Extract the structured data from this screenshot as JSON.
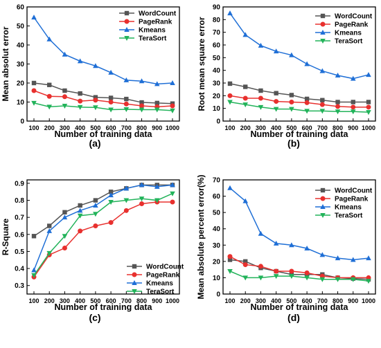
{
  "colors": {
    "WordCount": "#555555",
    "PageRank": "#e8302e",
    "Kmeans": "#1f6fd6",
    "TeraSort": "#22b35a"
  },
  "markers": {
    "WordCount": "square",
    "PageRank": "circle",
    "Kmeans": "triangle-up",
    "TeraSort": "triangle-down"
  },
  "chart_data": [
    {
      "panel": "(a)",
      "type": "line",
      "xlabel": "Number of training data",
      "ylabel": "Mean absolut error",
      "x": [
        100,
        200,
        300,
        400,
        500,
        600,
        700,
        800,
        900,
        1000
      ],
      "xticks": [
        "100",
        "200",
        "300",
        "400",
        "500",
        "600",
        "700",
        "800",
        "900",
        "1000"
      ],
      "ylim": [
        0,
        60
      ],
      "yticks": [
        0,
        10,
        20,
        30,
        40,
        50,
        60
      ],
      "legend": "top-right",
      "series": [
        {
          "name": "WordCount",
          "values": [
            20,
            19,
            16,
            14.5,
            12.5,
            12.2,
            11.6,
            9.8,
            9.5,
            9.2
          ]
        },
        {
          "name": "PageRank",
          "values": [
            16,
            13,
            12.8,
            10.5,
            11,
            10,
            9,
            8,
            7.5,
            8
          ]
        },
        {
          "name": "Kmeans",
          "values": [
            54.5,
            43,
            35,
            31.5,
            29,
            25.5,
            21.5,
            21,
            19.5,
            20
          ]
        },
        {
          "name": "TeraSort",
          "values": [
            9.5,
            7.5,
            8,
            7.3,
            7.2,
            6,
            6.2,
            6,
            6,
            5.5
          ]
        }
      ]
    },
    {
      "panel": "(b)",
      "type": "line",
      "xlabel": "Number of training data",
      "ylabel": "Root mean square error",
      "x": [
        100,
        200,
        300,
        400,
        500,
        600,
        700,
        800,
        900,
        1000
      ],
      "xticks": [
        "100",
        "200",
        "300",
        "400",
        "500",
        "600",
        "700",
        "800",
        "900",
        "1000"
      ],
      "ylim": [
        0,
        90
      ],
      "yticks": [
        0,
        10,
        20,
        30,
        40,
        50,
        60,
        70,
        80,
        90
      ],
      "legend": "top-right",
      "series": [
        {
          "name": "WordCount",
          "values": [
            29.5,
            27,
            24,
            22,
            20.5,
            17.5,
            16.5,
            15,
            15,
            15
          ]
        },
        {
          "name": "PageRank",
          "values": [
            20,
            18,
            18,
            15.5,
            15,
            14.5,
            13,
            11.5,
            11,
            11
          ]
        },
        {
          "name": "Kmeans",
          "values": [
            85,
            68,
            59.5,
            55,
            52,
            45,
            39.5,
            36,
            33.5,
            36.5
          ]
        },
        {
          "name": "TeraSort",
          "values": [
            15,
            13,
            11,
            9.5,
            9.5,
            8,
            8,
            7.5,
            7.5,
            7
          ]
        }
      ]
    },
    {
      "panel": "(c)",
      "type": "line",
      "xlabel": "Number of training data",
      "ylabel": "R-Square",
      "x": [
        100,
        200,
        300,
        400,
        500,
        600,
        700,
        800,
        900,
        1000
      ],
      "xticks": [
        "100",
        "200",
        "300",
        "400",
        "500",
        "600",
        "700",
        "800",
        "900",
        "1000"
      ],
      "ylim": [
        0.25,
        0.92
      ],
      "yticks": [
        0.3,
        0.4,
        0.5,
        0.6,
        0.7,
        0.8,
        0.9
      ],
      "legend": "bottom-right",
      "series": [
        {
          "name": "WordCount",
          "values": [
            0.59,
            0.65,
            0.73,
            0.77,
            0.8,
            0.85,
            0.87,
            0.89,
            0.89,
            0.89
          ]
        },
        {
          "name": "PageRank",
          "values": [
            0.35,
            0.48,
            0.52,
            0.62,
            0.65,
            0.67,
            0.74,
            0.78,
            0.79,
            0.79
          ]
        },
        {
          "name": "Kmeans",
          "values": [
            0.39,
            0.62,
            0.7,
            0.74,
            0.77,
            0.83,
            0.87,
            0.89,
            0.88,
            0.89
          ]
        },
        {
          "name": "TeraSort",
          "values": [
            0.36,
            0.49,
            0.59,
            0.71,
            0.72,
            0.79,
            0.8,
            0.81,
            0.8,
            0.84
          ]
        }
      ]
    },
    {
      "panel": "(d)",
      "type": "line",
      "xlabel": "Number of training data",
      "ylabel": "Mean absolute percent error(%)",
      "x": [
        100,
        200,
        300,
        400,
        500,
        600,
        700,
        800,
        900,
        1000
      ],
      "xticks": [
        "100",
        "200",
        "300",
        "400",
        "500",
        "600",
        "700",
        "800",
        "900",
        "1000"
      ],
      "ylim": [
        0,
        70
      ],
      "yticks": [
        0,
        10,
        20,
        30,
        40,
        50,
        60,
        70
      ],
      "legend": "top-right",
      "series": [
        {
          "name": "WordCount",
          "values": [
            21,
            20,
            16,
            14,
            12,
            12,
            12,
            10,
            9.5,
            9
          ]
        },
        {
          "name": "PageRank",
          "values": [
            23,
            18,
            17,
            14,
            14,
            13,
            11,
            10,
            10,
            10
          ]
        },
        {
          "name": "Kmeans",
          "values": [
            65,
            57,
            37,
            31,
            30,
            28,
            24,
            22,
            21,
            22
          ]
        },
        {
          "name": "TeraSort",
          "values": [
            14,
            10,
            10,
            11,
            11,
            10,
            9,
            9,
            9,
            8
          ]
        }
      ]
    }
  ]
}
